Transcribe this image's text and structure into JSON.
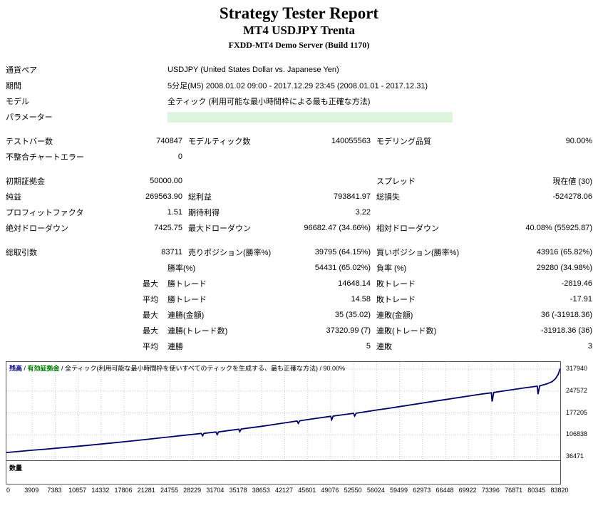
{
  "header": {
    "title": "Strategy Tester Report",
    "subtitle": "MT4 USDJPY Trenta",
    "server": "FXDD-MT4 Demo Server (Build 1170)"
  },
  "colors": {
    "param_highlight": "#dcf5dc",
    "grid": "#c9c9c9",
    "balance_line": "#000066",
    "legend_balance": "#000080",
    "legend_equity": "#008000"
  },
  "report": {
    "rows": [
      {
        "kind": "info",
        "cells": [
          {
            "cls": "l1",
            "text": "通貨ペア"
          },
          {
            "cls": "wide",
            "text": "USDJPY (United States Dollar vs. Japanese Yen)"
          }
        ]
      },
      {
        "kind": "info",
        "cells": [
          {
            "cls": "l1",
            "text": "期間"
          },
          {
            "cls": "wide",
            "text": "5分足(M5) 2008.01.02 09:00 - 2017.12.29 23:45 (2008.01.01 - 2017.12.31)"
          }
        ]
      },
      {
        "kind": "info",
        "cells": [
          {
            "cls": "l1",
            "text": "モデル"
          },
          {
            "cls": "wide",
            "text": "全ティック (利用可能な最小時間枠による最も正確な方法)"
          }
        ]
      },
      {
        "kind": "info",
        "cells": [
          {
            "cls": "l1",
            "text": "パラメーター"
          },
          {
            "cls": "parambar",
            "text": ""
          }
        ]
      },
      {
        "kind": "spacer",
        "cells": []
      },
      {
        "kind": "stats",
        "cells": [
          {
            "cls": "l1",
            "text": "テストバー数"
          },
          {
            "cls": "v1",
            "text": "740847"
          },
          {
            "cls": "l2",
            "text": "モデルティック数"
          },
          {
            "cls": "v2",
            "text": "140055563"
          },
          {
            "cls": "l3",
            "text": "モデリング品質"
          },
          {
            "cls": "v3",
            "text": "90.00%"
          }
        ]
      },
      {
        "kind": "stats",
        "cells": [
          {
            "cls": "l1",
            "text": "不整合チャートエラー"
          },
          {
            "cls": "v1",
            "text": "0"
          }
        ]
      },
      {
        "kind": "spacer",
        "cells": []
      },
      {
        "kind": "stats",
        "cells": [
          {
            "cls": "l1",
            "text": "初期証拠金"
          },
          {
            "cls": "v1",
            "text": "50000.00"
          },
          {
            "cls": "l2",
            "text": ""
          },
          {
            "cls": "v2",
            "text": ""
          },
          {
            "cls": "l3",
            "text": "スプレッド"
          },
          {
            "cls": "v3",
            "text": "現在値 (30)"
          }
        ]
      },
      {
        "kind": "stats",
        "cells": [
          {
            "cls": "l1",
            "text": "純益"
          },
          {
            "cls": "v1",
            "text": "269563.90"
          },
          {
            "cls": "l2",
            "text": "総利益"
          },
          {
            "cls": "v2",
            "text": "793841.97"
          },
          {
            "cls": "l3",
            "text": "総損失"
          },
          {
            "cls": "v3",
            "text": "-524278.06"
          }
        ]
      },
      {
        "kind": "stats",
        "cells": [
          {
            "cls": "l1",
            "text": "プロフィットファクタ"
          },
          {
            "cls": "v1",
            "text": "1.51"
          },
          {
            "cls": "l2",
            "text": "期待利得"
          },
          {
            "cls": "v2",
            "text": "3.22"
          }
        ]
      },
      {
        "kind": "stats",
        "cells": [
          {
            "cls": "l1",
            "text": "絶対ドローダウン"
          },
          {
            "cls": "v1",
            "text": "7425.75"
          },
          {
            "cls": "l2",
            "text": "最大ドローダウン"
          },
          {
            "cls": "v2",
            "text": "96682.47 (34.66%)"
          },
          {
            "cls": "l3",
            "text": "相対ドローダウン"
          },
          {
            "cls": "v3",
            "text": "40.08% (55925.87)"
          }
        ]
      },
      {
        "kind": "spacer",
        "cells": []
      },
      {
        "kind": "stats",
        "cells": [
          {
            "cls": "l1",
            "text": "総取引数"
          },
          {
            "cls": "v1",
            "text": "83711"
          },
          {
            "cls": "l2",
            "text": "売りポジション(勝率%)"
          },
          {
            "cls": "v2",
            "text": "39795 (64.15%)"
          },
          {
            "cls": "l3",
            "text": "買いポジション(勝率%)"
          },
          {
            "cls": "v3",
            "text": "43916 (65.82%)"
          }
        ]
      },
      {
        "kind": "trade",
        "cells": [
          {
            "cls": "pre",
            "text": ""
          },
          {
            "cls": "l2t",
            "text": "勝率(%)"
          },
          {
            "cls": "v2t",
            "text": "54431 (65.02%)"
          },
          {
            "cls": "l3",
            "text": "負率 (%)"
          },
          {
            "cls": "v3",
            "text": "29280 (34.98%)"
          }
        ]
      },
      {
        "kind": "trade",
        "cells": [
          {
            "cls": "pre",
            "text": "最大"
          },
          {
            "cls": "l2t",
            "text": "勝トレード"
          },
          {
            "cls": "v2t",
            "text": "14648.14"
          },
          {
            "cls": "l3",
            "text": "敗トレード"
          },
          {
            "cls": "v3",
            "text": "-2819.46"
          }
        ]
      },
      {
        "kind": "trade",
        "cells": [
          {
            "cls": "pre",
            "text": "平均"
          },
          {
            "cls": "l2t",
            "text": "勝トレード"
          },
          {
            "cls": "v2t",
            "text": "14.58"
          },
          {
            "cls": "l3",
            "text": "敗トレード"
          },
          {
            "cls": "v3",
            "text": "-17.91"
          }
        ]
      },
      {
        "kind": "trade",
        "cells": [
          {
            "cls": "pre",
            "text": "最大"
          },
          {
            "cls": "l2t",
            "text": "連勝(金額)"
          },
          {
            "cls": "v2t",
            "text": "35 (35.02)"
          },
          {
            "cls": "l3",
            "text": "連敗(金額)"
          },
          {
            "cls": "v3",
            "text": "36 (-31918.36)"
          }
        ]
      },
      {
        "kind": "trade",
        "cells": [
          {
            "cls": "pre",
            "text": "最大"
          },
          {
            "cls": "l2t",
            "text": "連勝(トレード数)"
          },
          {
            "cls": "v2t",
            "text": "37320.99 (7)"
          },
          {
            "cls": "l3",
            "text": "連敗(トレード数)"
          },
          {
            "cls": "v3",
            "text": "-31918.36 (36)"
          }
        ]
      },
      {
        "kind": "trade",
        "cells": [
          {
            "cls": "pre",
            "text": "平均"
          },
          {
            "cls": "l2t",
            "text": "連勝"
          },
          {
            "cls": "v2t",
            "text": "5"
          },
          {
            "cls": "l3",
            "text": "連敗"
          },
          {
            "cls": "v3",
            "text": "3"
          }
        ]
      }
    ]
  },
  "chart_data": {
    "type": "line",
    "title": "残高 / 有効証拠金 / 全ティック(利用可能な最小時間枠を使いすべてのティックを生成する、最も正確な方法) / 90.00%",
    "sep": " / ",
    "legend": [
      {
        "label": "残高",
        "color": "#000080"
      },
      {
        "label": "有効証拠金",
        "color": "#008000"
      }
    ],
    "model_text": "全ティック(利用可能な最小時間枠を使いすべてのティックを生成する、最も正確な方法)",
    "quality_text": "90.00%",
    "lot_label": "数量",
    "x_max": 83820,
    "x_ticks": [
      "0",
      "3909",
      "7383",
      "10857",
      "14332",
      "17806",
      "21281",
      "24755",
      "28229",
      "31704",
      "35178",
      "38653",
      "42127",
      "45601",
      "49076",
      "52550",
      "56024",
      "59499",
      "62973",
      "66448",
      "69922",
      "73396",
      "76871",
      "80345",
      "83820"
    ],
    "y_ticks": [
      317940,
      247572,
      177205,
      106838,
      36471
    ],
    "series": [
      {
        "name": "残高",
        "color": "#000066",
        "points": [
          [
            0,
            50000
          ],
          [
            2000,
            53600
          ],
          [
            3909,
            57200
          ],
          [
            6000,
            60800
          ],
          [
            7383,
            63400
          ],
          [
            9200,
            66800
          ],
          [
            10857,
            70200
          ],
          [
            12600,
            73600
          ],
          [
            14332,
            77200
          ],
          [
            16000,
            80600
          ],
          [
            17806,
            84600
          ],
          [
            19500,
            88200
          ],
          [
            21281,
            92200
          ],
          [
            23000,
            96200
          ],
          [
            24755,
            100400
          ],
          [
            26500,
            104400
          ],
          [
            28229,
            108400
          ],
          [
            29500,
            111200
          ],
          [
            29700,
            103800
          ],
          [
            29900,
            111600
          ],
          [
            31704,
            115800
          ],
          [
            31900,
            107400
          ],
          [
            32100,
            116200
          ],
          [
            33600,
            120400
          ],
          [
            35178,
            124800
          ],
          [
            35320,
            117000
          ],
          [
            35550,
            125400
          ],
          [
            37100,
            129800
          ],
          [
            38653,
            134200
          ],
          [
            40400,
            139600
          ],
          [
            42127,
            145200
          ],
          [
            44000,
            151200
          ],
          [
            44180,
            143600
          ],
          [
            44400,
            151800
          ],
          [
            45601,
            155600
          ],
          [
            47400,
            161200
          ],
          [
            49076,
            166200
          ],
          [
            49220,
            155200
          ],
          [
            49450,
            166800
          ],
          [
            51000,
            171400
          ],
          [
            52550,
            175800
          ],
          [
            52700,
            167200
          ],
          [
            52950,
            176400
          ],
          [
            54500,
            181400
          ],
          [
            56024,
            186400
          ],
          [
            58000,
            192400
          ],
          [
            59499,
            197400
          ],
          [
            61300,
            203400
          ],
          [
            62973,
            208800
          ],
          [
            64700,
            214400
          ],
          [
            66448,
            220000
          ],
          [
            68200,
            225800
          ],
          [
            69922,
            231200
          ],
          [
            71700,
            237000
          ],
          [
            73396,
            241800
          ],
          [
            73520,
            213600
          ],
          [
            73760,
            242800
          ],
          [
            75300,
            248000
          ],
          [
            76871,
            252800
          ],
          [
            78600,
            258200
          ],
          [
            80345,
            263000
          ],
          [
            80470,
            237400
          ],
          [
            80700,
            264000
          ],
          [
            81800,
            270400
          ],
          [
            82600,
            277600
          ],
          [
            83100,
            287000
          ],
          [
            83500,
            300000
          ],
          [
            83820,
            319500
          ]
        ]
      }
    ]
  }
}
